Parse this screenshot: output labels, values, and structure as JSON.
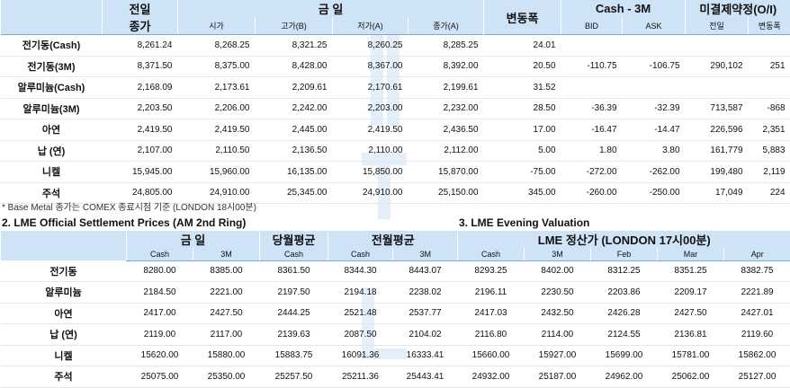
{
  "table1": {
    "headers": {
      "prev_top": "전일",
      "prev_bottom": "종가",
      "today_top": "금    일",
      "open": "시가",
      "high": "고가(B)",
      "low": "저가(A)",
      "close": "종가(A)",
      "change": "변동폭",
      "spread_top": "Cash - 3M",
      "bid": "BID",
      "ask": "ASK",
      "oi_top": "미결제약정(O/I)",
      "oi_prev": "전일",
      "oi_change": "변동폭"
    },
    "rows": [
      {
        "name": "전기동(Cash)",
        "prev": "8,261.24",
        "open": "8,268.25",
        "high": "8,321.25",
        "low": "8,260.25",
        "close": "8,285.25",
        "change": "24.01",
        "bid": "",
        "ask": "",
        "oi": "",
        "oi_change": ""
      },
      {
        "name": "전기동(3M)",
        "prev": "8,371.50",
        "open": "8,375.00",
        "high": "8,428.00",
        "low": "8,367.00",
        "close": "8,392.00",
        "change": "20.50",
        "bid": "-110.75",
        "ask": "-106.75",
        "oi": "290,102",
        "oi_change": "251"
      },
      {
        "name": "알루미늄(Cash)",
        "prev": "2,168.09",
        "open": "2,173.61",
        "high": "2,209.61",
        "low": "2,170.61",
        "close": "2,199.61",
        "change": "31.52",
        "bid": "",
        "ask": "",
        "oi": "",
        "oi_change": ""
      },
      {
        "name": "알루미늄(3M)",
        "prev": "2,203.50",
        "open": "2,206.00",
        "high": "2,242.00",
        "low": "2,203.00",
        "close": "2,232.00",
        "change": "28.50",
        "bid": "-36.39",
        "ask": "-32.39",
        "oi": "713,587",
        "oi_change": "-868"
      },
      {
        "name": "아연",
        "prev": "2,419.50",
        "open": "2,419.50",
        "high": "2,445.00",
        "low": "2,419.50",
        "close": "2,436.50",
        "change": "17.00",
        "bid": "-16.47",
        "ask": "-14.47",
        "oi": "226,596",
        "oi_change": "2,351"
      },
      {
        "name": "납 (연)",
        "prev": "2,107.00",
        "open": "2,110.50",
        "high": "2,136.50",
        "low": "2,110.00",
        "close": "2,112.00",
        "change": "5.00",
        "bid": "1.80",
        "ask": "3.80",
        "oi": "161,779",
        "oi_change": "5,883"
      },
      {
        "name": "니켈",
        "prev": "15,945.00",
        "open": "15,960.00",
        "high": "16,135.00",
        "low": "15,850.00",
        "close": "15,870.00",
        "change": "-75.00",
        "bid": "-272.00",
        "ask": "-262.00",
        "oi": "199,480",
        "oi_change": "2,119"
      },
      {
        "name": "주석",
        "prev": "24,805.00",
        "open": "24,910.00",
        "high": "25,345.00",
        "low": "24,910.00",
        "close": "25,150.00",
        "change": "345.00",
        "bid": "-260.00",
        "ask": "-250.00",
        "oi": "17,049",
        "oi_change": "224"
      }
    ]
  },
  "note": "* Base Metal 종가는 COMEX 종료시점 기준 (LONDON 18시00분)",
  "section2_title": "2. LME Official Settlement Prices (AM 2nd Ring)",
  "section3_title": "3. LME Evening Valuation",
  "table2": {
    "headers": {
      "today": "금    일",
      "month_avg": "당월평균",
      "prev_month_avg": "전월평균",
      "cash": "Cash",
      "m3": "3M"
    },
    "rows": [
      {
        "name": "전기동",
        "cash": "8280.00",
        "m3": "8385.00",
        "ma_cash": "8361.50",
        "pma_cash": "8344.30",
        "pma_3m": "8443.07"
      },
      {
        "name": "알루미늄",
        "cash": "2184.50",
        "m3": "2221.00",
        "ma_cash": "2197.50",
        "pma_cash": "2194.18",
        "pma_3m": "2238.02"
      },
      {
        "name": "아연",
        "cash": "2417.00",
        "m3": "2427.50",
        "ma_cash": "2444.25",
        "pma_cash": "2521.48",
        "pma_3m": "2537.77"
      },
      {
        "name": "납 (연)",
        "cash": "2119.00",
        "m3": "2117.00",
        "ma_cash": "2139.63",
        "pma_cash": "2087.50",
        "pma_3m": "2104.02"
      },
      {
        "name": "니켈",
        "cash": "15620.00",
        "m3": "15880.00",
        "ma_cash": "15883.75",
        "pma_cash": "16091.36",
        "pma_3m": "16333.41"
      },
      {
        "name": "주석",
        "cash": "25075.00",
        "m3": "25350.00",
        "ma_cash": "25257.50",
        "pma_cash": "25211.36",
        "pma_3m": "25443.41"
      }
    ]
  },
  "table3": {
    "headers": {
      "title": "LME 정산가 (LONDON 17시00분)",
      "cash": "Cash",
      "m3": "3M",
      "feb": "Feb",
      "mar": "Mar",
      "apr": "Apr"
    },
    "rows": [
      {
        "cash": "8293.25",
        "m3": "8402.00",
        "feb": "8312.25",
        "mar": "8351.25",
        "apr": "8382.75"
      },
      {
        "cash": "2196.11",
        "m3": "2230.50",
        "feb": "2203.86",
        "mar": "2209.17",
        "apr": "2221.89"
      },
      {
        "cash": "2417.03",
        "m3": "2432.50",
        "feb": "2426.28",
        "mar": "2427.50",
        "apr": "2427.01"
      },
      {
        "cash": "2116.80",
        "m3": "2114.00",
        "feb": "2124.55",
        "mar": "2136.81",
        "apr": "2119.60"
      },
      {
        "cash": "15660.00",
        "m3": "15927.00",
        "feb": "15699.00",
        "mar": "15781.00",
        "apr": "15862.00"
      },
      {
        "cash": "24932.00",
        "m3": "25187.00",
        "feb": "24962.00",
        "mar": "25062.00",
        "apr": "25127.00"
      }
    ]
  },
  "colors": {
    "header_bg": "#cfe3f6",
    "rule": "#7aa8d6",
    "row_line": "#dfe7f0"
  }
}
